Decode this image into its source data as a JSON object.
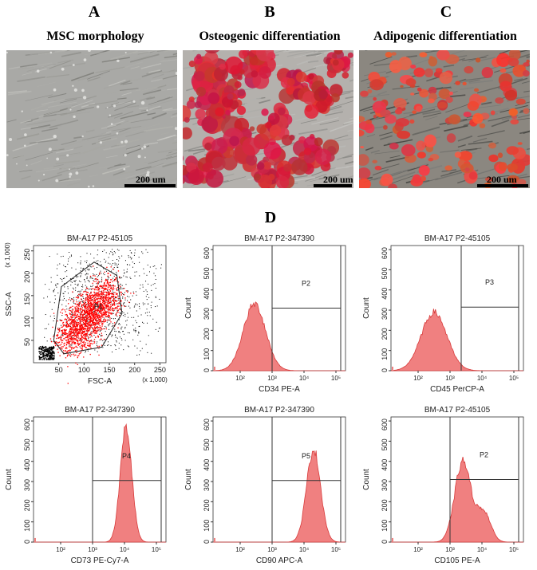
{
  "figure": {
    "panels": [
      {
        "letter": "A",
        "title": "MSC morphology",
        "scale": "200 um",
        "kind": "phase"
      },
      {
        "letter": "B",
        "title": "Osteogenic differentiation",
        "scale": "200 um",
        "kind": "osteo"
      },
      {
        "letter": "C",
        "title": "Adipogenic differentiation",
        "scale": "200 um",
        "kind": "adipo"
      }
    ],
    "panel_d_letter": "D",
    "colors": {
      "fill": "#f08080",
      "stroke": "#d83a3a",
      "gate": "#333333",
      "dots_red": "#ff0000"
    }
  },
  "flow": {
    "scatter": {
      "title": "BM-A17 P2-45105",
      "xlabel": "FSC-A",
      "ylabel": "SSC-A",
      "xunit": "(x 1,000)",
      "yunit": "(x 1,000)",
      "xticks": [
        "50",
        "100",
        "150",
        "200",
        "250"
      ],
      "yticks": [
        "50",
        "100",
        "150",
        "200",
        "250"
      ],
      "gate_label": "P1"
    },
    "histograms": [
      {
        "title": "BM-A17 P2-347390",
        "xlabel": "CD34 PE-A",
        "gate": "P2",
        "peak_log": 2.45,
        "peak_count": 330,
        "width": 0.35,
        "gate_start_log": 3.0,
        "gate_level": 310
      },
      {
        "title": "BM-A17 P2-45105",
        "xlabel": "CD45 PerCP-A",
        "gate": "P3",
        "peak_log": 2.5,
        "peak_count": 290,
        "width": 0.4,
        "gate_start_log": 3.35,
        "gate_level": 315
      },
      {
        "title": "BM-A17 P2-347390",
        "xlabel": "CD73 PE-Cy7-A",
        "gate": "P4",
        "peak_log": 4.05,
        "peak_count": 570,
        "width": 0.18,
        "gate_start_log": 3.0,
        "gate_level": 305
      },
      {
        "title": "BM-A17 P2-347390",
        "xlabel": "CD90 APC-A",
        "gate": "P5",
        "peak_log": 4.3,
        "peak_count": 460,
        "width": 0.22,
        "gate_start_log": 3.0,
        "gate_level": 305
      },
      {
        "title": "BM-A17 P2-45105",
        "xlabel": "CD105 PE-A",
        "gate": "P2",
        "peak_log": 3.4,
        "peak_count": 400,
        "width": 0.25,
        "gate_start_log": 3.0,
        "gate_level": 310,
        "second_peak_log": 4.05,
        "second_peak_count": 150
      }
    ],
    "hist_y_label": "Count",
    "hist_yticks": [
      "0",
      "100",
      "200",
      "300",
      "400",
      "500",
      "600"
    ],
    "hist_xticks": [
      "10²",
      "10³",
      "10⁴",
      "10⁵"
    ]
  }
}
